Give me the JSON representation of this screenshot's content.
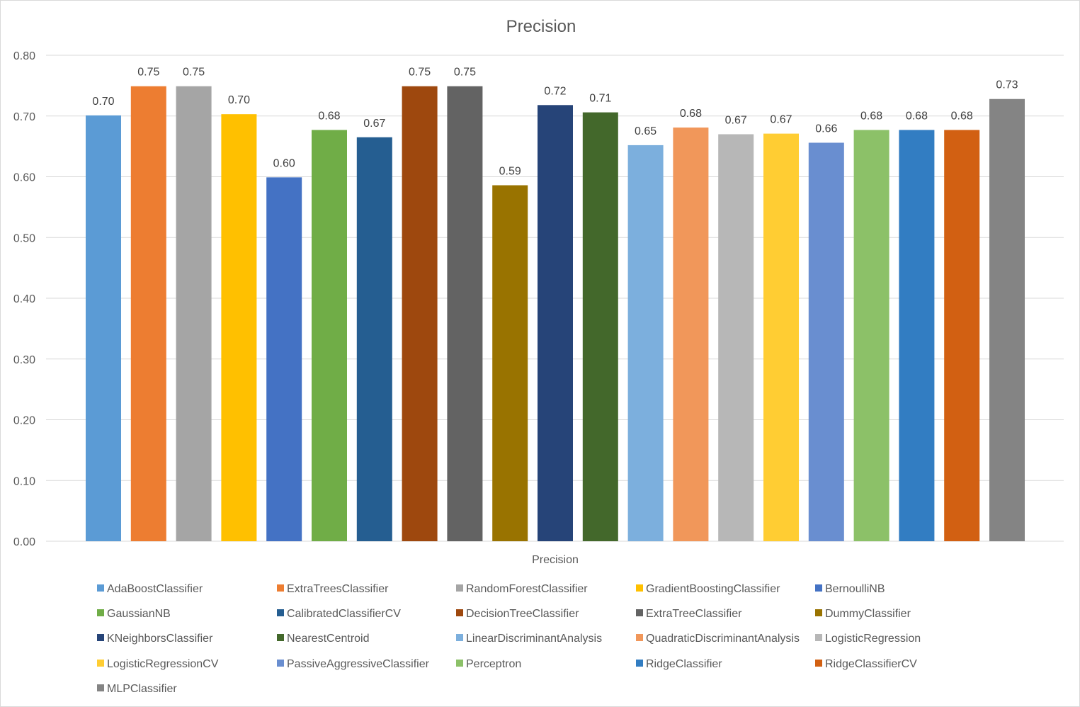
{
  "chart_data": {
    "type": "bar",
    "title": "Precision",
    "categories": [
      "Precision"
    ],
    "ylim": [
      0,
      0.8
    ],
    "ytick_step": 0.1,
    "grid": true,
    "legend_position": "bottom",
    "series": [
      {
        "name": "AdaBoostClassifier",
        "value": 0.701,
        "label": "0.70",
        "color": "#5B9BD5"
      },
      {
        "name": "ExtraTreesClassifier",
        "value": 0.749,
        "label": "0.75",
        "color": "#ED7D31"
      },
      {
        "name": "RandomForestClassifier",
        "value": 0.749,
        "label": "0.75",
        "color": "#A5A5A5"
      },
      {
        "name": "GradientBoostingClassifier",
        "value": 0.703,
        "label": "0.70",
        "color": "#FFC000"
      },
      {
        "name": "BernoulliNB",
        "value": 0.599,
        "label": "0.60",
        "color": "#4472C4"
      },
      {
        "name": "GaussianNB",
        "value": 0.677,
        "label": "0.68",
        "color": "#70AD47"
      },
      {
        "name": "CalibratedClassifierCV",
        "value": 0.665,
        "label": "0.67",
        "color": "#255E91"
      },
      {
        "name": "DecisionTreeClassifier",
        "value": 0.749,
        "label": "0.75",
        "color": "#9E480E"
      },
      {
        "name": "ExtraTreeClassifier",
        "value": 0.749,
        "label": "0.75",
        "color": "#636363"
      },
      {
        "name": "DummyClassifier",
        "value": 0.586,
        "label": "0.59",
        "color": "#997300"
      },
      {
        "name": "KNeighborsClassifier",
        "value": 0.718,
        "label": "0.72",
        "color": "#264478"
      },
      {
        "name": "NearestCentroid",
        "value": 0.706,
        "label": "0.71",
        "color": "#43682B"
      },
      {
        "name": "LinearDiscriminantAnalysis",
        "value": 0.652,
        "label": "0.65",
        "color": "#7CAFDD"
      },
      {
        "name": "QuadraticDiscriminantAnalysis",
        "value": 0.681,
        "label": "0.68",
        "color": "#F1975A"
      },
      {
        "name": "LogisticRegression",
        "value": 0.67,
        "label": "0.67",
        "color": "#B7B7B7"
      },
      {
        "name": "LogisticRegressionCV",
        "value": 0.671,
        "label": "0.67",
        "color": "#FFCD33"
      },
      {
        "name": "PassiveAggressiveClassifier",
        "value": 0.656,
        "label": "0.66",
        "color": "#698ED0"
      },
      {
        "name": "Perceptron",
        "value": 0.677,
        "label": "0.68",
        "color": "#8CC168"
      },
      {
        "name": "RidgeClassifier",
        "value": 0.677,
        "label": "0.68",
        "color": "#327DC2"
      },
      {
        "name": "RidgeClassifierCV",
        "value": 0.677,
        "label": "0.68",
        "color": "#D26012"
      },
      {
        "name": "MLPClassifier",
        "value": 0.728,
        "label": "0.73",
        "color": "#848484"
      }
    ],
    "yticks": [
      "0.00",
      "0.10",
      "0.20",
      "0.30",
      "0.40",
      "0.50",
      "0.60",
      "0.70",
      "0.80"
    ]
  }
}
